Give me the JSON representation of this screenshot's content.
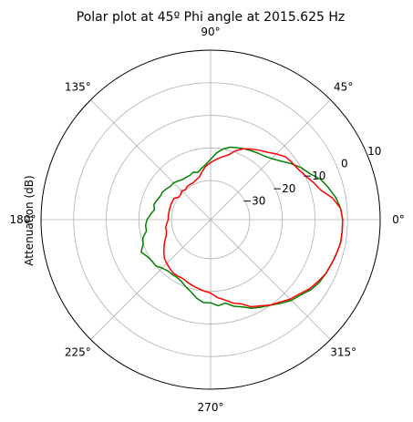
{
  "chart_data": {
    "type": "line",
    "projection": "polar",
    "title": "Polar plot at 45º Phi angle at 2015.625 Hz",
    "ylabel": "Attenuation (dB)",
    "rlim": [
      -42,
      10
    ],
    "r_ticks": [
      -30,
      -20,
      -10,
      0,
      10
    ],
    "r_tick_labels": [
      "−30",
      "−20",
      "−10",
      "0",
      "10"
    ],
    "theta_ticks": [
      0,
      45,
      90,
      135,
      180,
      225,
      270,
      315
    ],
    "theta_tick_labels": [
      "0°",
      "45°",
      "90°",
      "135°",
      "180°",
      "225°",
      "270°",
      "315°"
    ],
    "grid": true,
    "legend": "none",
    "series": [
      {
        "color": "#008000",
        "theta": [
          0,
          5,
          10,
          15,
          20,
          25,
          30,
          35,
          40,
          45,
          50,
          55,
          60,
          65,
          70,
          75,
          80,
          85,
          90,
          95,
          100,
          105,
          110,
          115,
          120,
          125,
          130,
          135,
          140,
          145,
          150,
          155,
          160,
          165,
          170,
          175,
          180,
          185,
          190,
          195,
          200,
          205,
          210,
          215,
          220,
          225,
          230,
          235,
          240,
          245,
          250,
          255,
          260,
          265,
          270,
          275,
          280,
          285,
          290,
          295,
          300,
          305,
          310,
          315,
          320,
          325,
          330,
          335,
          340,
          345,
          350,
          355
        ],
        "r": [
          -1.5,
          -2,
          -3,
          -4.5,
          -6,
          -8.5,
          -10,
          -12,
          -14,
          -15.5,
          -16.5,
          -17,
          -17.5,
          -18,
          -18.5,
          -19,
          -20,
          -21.5,
          -23.5,
          -25,
          -26,
          -27,
          -26.5,
          -27,
          -27,
          -27,
          -26.5,
          -26,
          -26,
          -25.5,
          -25,
          -25,
          -24.5,
          -24,
          -24.5,
          -23.5,
          -22.5,
          -22,
          -22,
          -20.5,
          -20,
          -18.5,
          -19.5,
          -20,
          -20,
          -21,
          -21.5,
          -21.5,
          -21.5,
          -21,
          -20,
          -19,
          -17.5,
          -16.5,
          -16.5,
          -15.5,
          -16,
          -14.5,
          -13.5,
          -12,
          -11,
          -10,
          -8.5,
          -7,
          -6,
          -4.5,
          -3.5,
          -3,
          -2.5,
          -2,
          -1.5,
          -1.5
        ]
      },
      {
        "color": "#ff0000",
        "theta": [
          0,
          5,
          10,
          15,
          20,
          25,
          30,
          35,
          40,
          45,
          50,
          55,
          60,
          65,
          70,
          75,
          80,
          85,
          90,
          95,
          100,
          105,
          110,
          115,
          120,
          125,
          130,
          135,
          140,
          145,
          150,
          155,
          160,
          165,
          170,
          175,
          180,
          185,
          190,
          195,
          200,
          205,
          210,
          215,
          220,
          225,
          230,
          235,
          240,
          245,
          250,
          255,
          260,
          265,
          270,
          275,
          280,
          285,
          290,
          295,
          300,
          305,
          310,
          315,
          320,
          325,
          330,
          335,
          340,
          345,
          350,
          355
        ],
        "r": [
          -1.5,
          -2,
          -4,
          -7,
          -8.5,
          -10,
          -11,
          -11.5,
          -12,
          -13.5,
          -15,
          -16,
          -17,
          -18,
          -19.5,
          -21.5,
          -22.5,
          -23.5,
          -24.5,
          -25.5,
          -27,
          -28.5,
          -29,
          -29.5,
          -29.5,
          -29.5,
          -30,
          -29.5,
          -30,
          -30,
          -29,
          -29,
          -29,
          -29,
          -29,
          -29,
          -29,
          -28.5,
          -28,
          -28,
          -27.5,
          -26.5,
          -25.5,
          -24.5,
          -23.5,
          -23,
          -22.5,
          -22,
          -22,
          -22,
          -21.5,
          -21,
          -20.5,
          -20,
          -19.5,
          -18,
          -17,
          -15.5,
          -14.5,
          -12.5,
          -11.5,
          -10,
          -9,
          -7.5,
          -6.5,
          -5,
          -4,
          -3,
          -2.5,
          -2,
          -1.5,
          -1.5
        ]
      }
    ]
  }
}
